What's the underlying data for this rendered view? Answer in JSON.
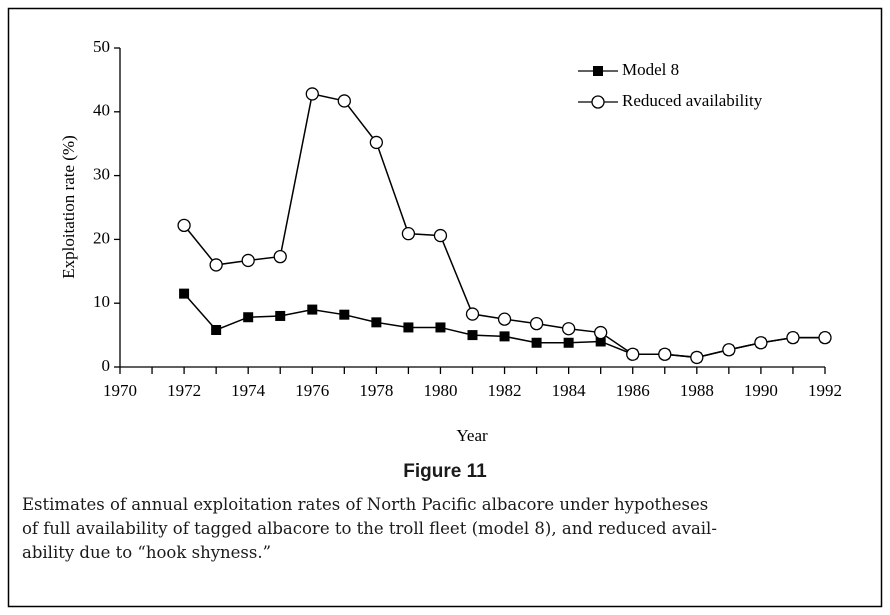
{
  "chart_data": {
    "type": "line",
    "x": [
      1972,
      1973,
      1974,
      1975,
      1976,
      1977,
      1978,
      1979,
      1980,
      1981,
      1982,
      1983,
      1984,
      1985,
      1986,
      1987,
      1988,
      1989,
      1990,
      1991,
      1992
    ],
    "series": [
      {
        "name": "Model 8",
        "color": "#000000",
        "marker": "square",
        "values": [
          11.5,
          5.8,
          7.8,
          8.0,
          9.0,
          8.2,
          7.0,
          6.2,
          6.2,
          5.0,
          4.8,
          3.8,
          3.8,
          4.0,
          2.0,
          2.0,
          1.5,
          2.7,
          3.8,
          4.6,
          4.6
        ]
      },
      {
        "name": "Reduced availability",
        "color": "#000000",
        "marker": "circle",
        "values": [
          22.2,
          16.0,
          16.7,
          17.3,
          42.8,
          41.7,
          35.2,
          20.9,
          20.6,
          8.3,
          7.5,
          6.8,
          6.0,
          5.4,
          2.0,
          2.0,
          1.5,
          2.7,
          3.8,
          4.6,
          4.6
        ]
      }
    ],
    "xlabel": "Year",
    "ylabel": "Exploitation rate (%)",
    "xlim": [
      1970,
      1992
    ],
    "xticks": [
      1970,
      1972,
      1974,
      1976,
      1978,
      1980,
      1982,
      1984,
      1986,
      1988,
      1990,
      1992
    ],
    "xminorticks": [
      1971,
      1973,
      1975,
      1977,
      1979,
      1981,
      1983,
      1985,
      1987,
      1989,
      1991
    ],
    "ylim": [
      0,
      50
    ],
    "yticks": [
      0,
      10,
      20,
      30,
      40,
      50
    ],
    "grid": false,
    "legend": "upper right"
  },
  "caption": {
    "label": "Figure 11",
    "lines": [
      "Estimates of annual exploitation rates of North Pacific albacore under hypotheses",
      "of full availability of tagged albacore to the troll fleet (model 8), and reduced avail-",
      "ability due to “hook shyness.”"
    ]
  }
}
